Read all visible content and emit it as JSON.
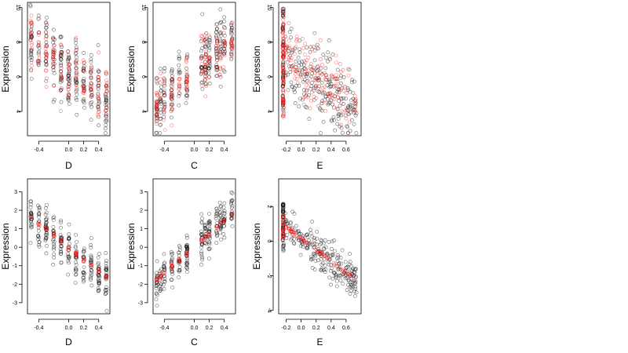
{
  "figure": {
    "ylabel": "Expression",
    "colors": {
      "observed": "#000000",
      "fitted": "#ff0000",
      "background": "#ffffff"
    }
  },
  "chart_data": [
    {
      "type": "scatter",
      "xlabel": "D",
      "ylabel": "Expression",
      "xlim": [
        -0.55,
        0.55
      ],
      "ylim": [
        2.6,
        10.3
      ],
      "xticks": [
        -0.4,
        0.0,
        0.2,
        0.4
      ],
      "xtick_labels": [
        "-0.4",
        "0.0",
        "0.2",
        "0.4"
      ],
      "yticks": [
        4,
        6,
        8,
        10
      ],
      "ytick_labels": [
        "4",
        "6",
        "8",
        "10"
      ],
      "ytick_rotated": true,
      "x_groups": [
        -0.5,
        -0.4,
        -0.3,
        -0.2,
        -0.1,
        0.0,
        0.1,
        0.2,
        0.3,
        0.4,
        0.5
      ],
      "series": [
        {
          "role": "observed",
          "color": "#000000",
          "trend": [
            [
              -0.5,
              8.2
            ],
            [
              0.5,
              4.6
            ]
          ],
          "y_spread": 1.9,
          "n": 250,
          "seed": 11
        },
        {
          "role": "fitted",
          "color": "#ff0000",
          "trend": [
            [
              -0.5,
              8.0
            ],
            [
              0.5,
              4.8
            ]
          ],
          "y_spread": 1.6,
          "n": 170,
          "seed": 12
        }
      ]
    },
    {
      "type": "scatter",
      "xlabel": "C",
      "ylabel": "Expression",
      "xlim": [
        -0.55,
        0.55
      ],
      "ylim": [
        2.6,
        10.3
      ],
      "xticks": [
        -0.4,
        0.0,
        0.2,
        0.4
      ],
      "xtick_labels": [
        "-0.4",
        "0.0",
        "0.2",
        "0.4"
      ],
      "yticks": [
        4,
        6,
        8,
        10
      ],
      "ytick_labels": [
        "4",
        "6",
        "8",
        "10"
      ],
      "ytick_rotated": true,
      "x_groups": [
        -0.5,
        -0.45,
        -0.4,
        -0.3,
        -0.2,
        -0.1,
        0.1,
        0.15,
        0.2,
        0.3,
        0.35,
        0.4,
        0.5
      ],
      "series": [
        {
          "role": "observed",
          "color": "#000000",
          "trend": [
            [
              -0.5,
              4.4
            ],
            [
              0.5,
              8.2
            ]
          ],
          "y_spread": 1.6,
          "n": 250,
          "seed": 21
        },
        {
          "role": "fitted",
          "color": "#ff0000",
          "trend": [
            [
              -0.5,
              4.5
            ],
            [
              0.5,
              8.0
            ]
          ],
          "y_spread": 1.3,
          "n": 170,
          "seed": 22
        }
      ]
    },
    {
      "type": "scatter",
      "xlabel": "E",
      "ylabel": "Expression",
      "xlim": [
        -0.3,
        0.8
      ],
      "ylim": [
        2.6,
        10.3
      ],
      "xticks": [
        -0.2,
        0.0,
        0.2,
        0.4,
        0.6
      ],
      "xtick_labels": [
        "-0.2",
        "0.0",
        "0.2",
        "0.4",
        "0.6"
      ],
      "yticks": [
        4,
        6,
        8,
        10
      ],
      "ytick_labels": [
        "4",
        "6",
        "8",
        "10"
      ],
      "ytick_rotated": true,
      "stack_x": -0.24,
      "series": [
        {
          "role": "observed",
          "color": "#000000",
          "trend": [
            [
              -0.2,
              7.0
            ],
            [
              0.75,
              4.0
            ]
          ],
          "y_spread": 1.8,
          "n": 210,
          "stack_n": 70,
          "stack_range": [
            3.8,
            10.0
          ],
          "seed": 31
        },
        {
          "role": "fitted",
          "color": "#ff0000",
          "trend": [
            [
              -0.2,
              7.0
            ],
            [
              0.75,
              4.2
            ]
          ],
          "y_spread": 1.8,
          "n": 150,
          "stack_n": 80,
          "stack_range": [
            3.6,
            10.0
          ],
          "seed": 32
        }
      ]
    },
    {
      "type": "scatter",
      "xlabel": "D",
      "ylabel": "Expression",
      "xlim": [
        -0.55,
        0.55
      ],
      "ylim": [
        -3.6,
        3.7
      ],
      "xticks": [
        -0.4,
        0.0,
        0.2,
        0.4
      ],
      "xtick_labels": [
        "-0.4",
        "0.0",
        "0.2",
        "0.4"
      ],
      "yticks": [
        -3,
        -2,
        -1,
        0,
        1,
        2,
        3
      ],
      "ytick_labels": [
        "-3",
        "-2",
        "-1",
        "0",
        "1",
        "2",
        "3"
      ],
      "ytick_rotated": false,
      "x_groups": [
        -0.5,
        -0.4,
        -0.3,
        -0.2,
        -0.1,
        0.0,
        0.1,
        0.2,
        0.3,
        0.4,
        0.5
      ],
      "series": [
        {
          "role": "observed",
          "color": "#000000",
          "trend": [
            [
              -0.5,
              1.6
            ],
            [
              0.5,
              -1.8
            ]
          ],
          "y_spread": 1.1,
          "n": 260,
          "seed": 41
        },
        {
          "role": "fitted",
          "color": "#ff0000",
          "trend": [
            [
              -0.5,
              1.6
            ],
            [
              0.5,
              -1.6
            ]
          ],
          "y_spread": 0.12,
          "n": 70,
          "seed": 42
        }
      ]
    },
    {
      "type": "scatter",
      "xlabel": "C",
      "ylabel": "Expression",
      "xlim": [
        -0.55,
        0.55
      ],
      "ylim": [
        -3.6,
        3.7
      ],
      "xticks": [
        -0.4,
        0.0,
        0.2,
        0.4
      ],
      "xtick_labels": [
        "-0.4",
        "0.0",
        "0.2",
        "0.4"
      ],
      "yticks": [
        -3,
        -2,
        -1,
        0,
        1,
        2,
        3
      ],
      "ytick_labels": [
        "-3",
        "-2",
        "-1",
        "0",
        "1",
        "2",
        "3"
      ],
      "ytick_rotated": false,
      "x_groups": [
        -0.5,
        -0.45,
        -0.4,
        -0.3,
        -0.2,
        -0.1,
        0.1,
        0.15,
        0.2,
        0.3,
        0.35,
        0.4,
        0.5
      ],
      "series": [
        {
          "role": "observed",
          "color": "#000000",
          "trend": [
            [
              -0.5,
              -1.8
            ],
            [
              0.5,
              1.8
            ]
          ],
          "y_spread": 1.0,
          "n": 260,
          "seed": 51
        },
        {
          "role": "fitted",
          "color": "#ff0000",
          "trend": [
            [
              -0.5,
              -1.75
            ],
            [
              0.5,
              1.75
            ]
          ],
          "y_spread": 0.15,
          "n": 70,
          "seed": 52
        }
      ]
    },
    {
      "type": "scatter",
      "xlabel": "E",
      "ylabel": "Expression",
      "xlim": [
        -0.3,
        0.8
      ],
      "ylim": [
        -4.2,
        3.6
      ],
      "xticks": [
        -0.2,
        0.0,
        0.2,
        0.4,
        0.6
      ],
      "xtick_labels": [
        "-0.2",
        "0.0",
        "0.2",
        "0.4",
        "0.6"
      ],
      "yticks": [
        -4,
        -2,
        0,
        2
      ],
      "ytick_labels": [
        "-4",
        "-2",
        "0",
        "2"
      ],
      "ytick_rotated": true,
      "stack_x": -0.24,
      "series": [
        {
          "role": "observed",
          "color": "#000000",
          "trend": [
            [
              -0.2,
              0.9
            ],
            [
              0.75,
              -2.4
            ]
          ],
          "y_spread": 1.0,
          "n": 220,
          "stack_n": 60,
          "stack_range": [
            -0.6,
            2.3
          ],
          "seed": 61
        },
        {
          "role": "fitted",
          "color": "#ff0000",
          "trend": [
            [
              -0.2,
              0.8
            ],
            [
              0.75,
              -2.3
            ]
          ],
          "y_spread": 0.1,
          "n": 70,
          "stack_n": 25,
          "stack_range": [
            0.0,
            1.5
          ],
          "seed": 62
        }
      ]
    }
  ]
}
